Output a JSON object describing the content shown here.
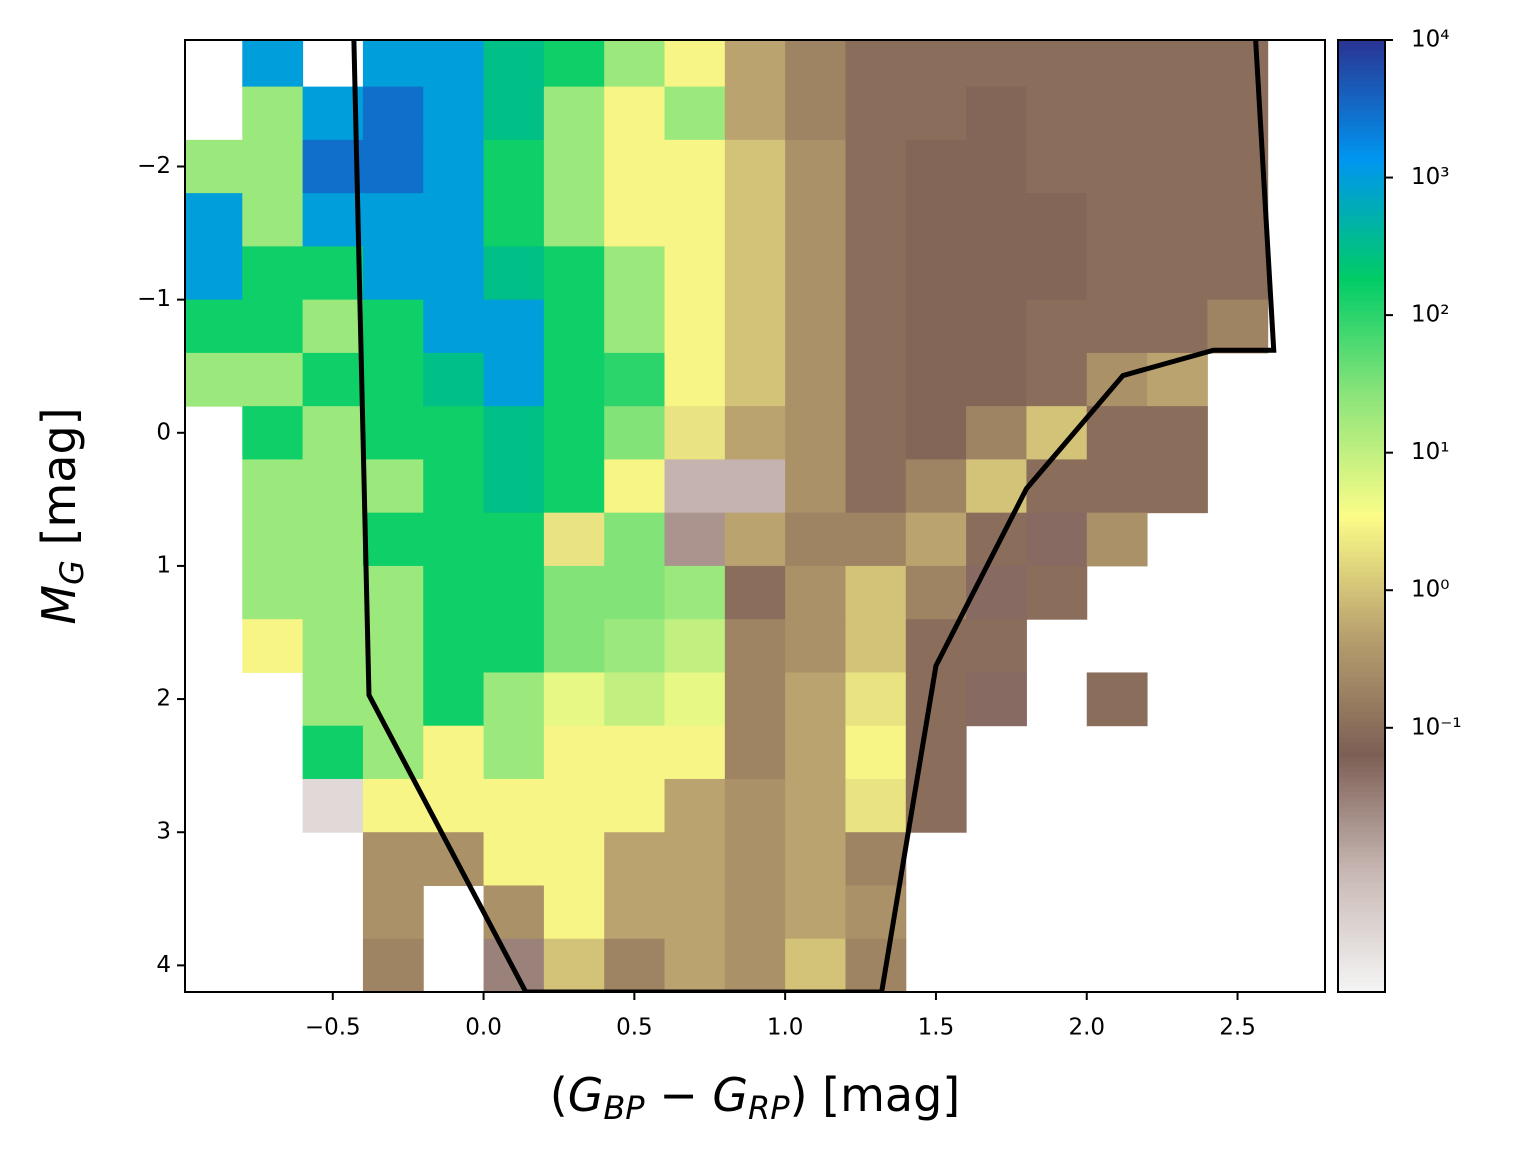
{
  "chart_data": {
    "type": "heatmap",
    "xlabel": [
      {
        "t": "("
      },
      {
        "t": "G",
        "italic": true
      },
      {
        "t": "BP",
        "italic": true,
        "sub": true
      },
      {
        "t": " − "
      },
      {
        "t": "G",
        "italic": true
      },
      {
        "t": "RP",
        "italic": true,
        "sub": true
      },
      {
        "t": ") [mag]"
      }
    ],
    "ylabel": [
      {
        "t": "M",
        "italic": true
      },
      {
        "t": "G",
        "italic": true,
        "sub": true
      },
      {
        "t": " [mag]"
      }
    ],
    "xlim": [
      -0.99,
      2.79
    ],
    "ylim": [
      4.2,
      -2.95
    ],
    "xticks": [
      {
        "value": -0.5,
        "label": "−0.5"
      },
      {
        "value": 0,
        "label": "0.0"
      },
      0.5,
      {
        "value": 1,
        "label": "1.0"
      },
      1.5,
      {
        "value": 2,
        "label": "2.0"
      },
      2.5
    ],
    "yticks": [
      {
        "value": -2,
        "label": "−2"
      },
      {
        "value": -1,
        "label": "−1"
      },
      0,
      1,
      2,
      3,
      4
    ],
    "xbins": [
      -1.0,
      -0.8,
      -0.6,
      -0.4,
      -0.2,
      0.0,
      0.2,
      0.4,
      0.6,
      0.8,
      1.0,
      1.2,
      1.4,
      1.6,
      1.8,
      2.0,
      2.2,
      2.4,
      2.6,
      2.8
    ],
    "ybins": [
      -3.0,
      -2.6,
      -2.2,
      -1.8,
      -1.4,
      -1.0,
      -0.6,
      -0.2,
      0.2,
      0.6,
      1.0,
      1.4,
      1.8,
      2.2,
      2.6,
      3.0,
      3.4,
      3.8,
      4.2
    ],
    "z": [
      [
        null,
        1000,
        null,
        1000,
        1000,
        300,
        150,
        20,
        3,
        0.5,
        0.2,
        0.1,
        0.1,
        0.1,
        0.1,
        0.1,
        0.1,
        0.1,
        null
      ],
      [
        null,
        20,
        1000,
        3000,
        1000,
        300,
        20,
        3,
        20,
        0.5,
        0.2,
        0.1,
        0.1,
        0.08,
        0.1,
        0.1,
        0.1,
        0.1,
        null
      ],
      [
        20,
        20,
        3000,
        3000,
        1000,
        150,
        20,
        3,
        3,
        1,
        0.3,
        0.1,
        0.08,
        0.08,
        0.1,
        0.1,
        0.1,
        0.1,
        null
      ],
      [
        1000,
        20,
        1000,
        1000,
        1000,
        150,
        20,
        3,
        3,
        1,
        0.3,
        0.1,
        0.08,
        0.08,
        0.08,
        0.1,
        0.1,
        0.1,
        null
      ],
      [
        1000,
        150,
        150,
        1000,
        1000,
        300,
        150,
        20,
        3,
        1,
        0.3,
        0.1,
        0.08,
        0.08,
        0.08,
        0.1,
        0.1,
        0.1,
        null
      ],
      [
        150,
        150,
        20,
        150,
        1000,
        1000,
        150,
        20,
        3,
        1,
        0.3,
        0.1,
        0.08,
        0.08,
        0.1,
        0.1,
        0.1,
        0.2,
        null
      ],
      [
        20,
        20,
        150,
        150,
        300,
        1000,
        150,
        100,
        3,
        1,
        0.3,
        0.1,
        0.08,
        0.08,
        0.1,
        0.3,
        0.5,
        null,
        null
      ],
      [
        null,
        150,
        20,
        150,
        150,
        300,
        150,
        30,
        2,
        0.5,
        0.3,
        0.1,
        0.08,
        0.2,
        1,
        0.1,
        0.1,
        null,
        null
      ],
      [
        null,
        20,
        20,
        20,
        150,
        300,
        150,
        3,
        0.01,
        0.01,
        0.3,
        0.1,
        0.2,
        1,
        0.1,
        0.1,
        0.1,
        null,
        null
      ],
      [
        null,
        20,
        20,
        150,
        150,
        150,
        2,
        30,
        0.02,
        0.5,
        0.2,
        0.2,
        0.5,
        0.1,
        0.05,
        0.3,
        null,
        null,
        null
      ],
      [
        null,
        20,
        20,
        20,
        150,
        150,
        30,
        30,
        20,
        0.1,
        0.3,
        1,
        0.2,
        0.05,
        0.1,
        null,
        null,
        null,
        null
      ],
      [
        null,
        3,
        20,
        20,
        150,
        150,
        30,
        20,
        10,
        0.2,
        0.3,
        1,
        0.1,
        0.1,
        null,
        null,
        null,
        null,
        null
      ],
      [
        null,
        null,
        20,
        20,
        150,
        20,
        5,
        10,
        5,
        0.2,
        0.5,
        2,
        0.1,
        0.05,
        null,
        0.1,
        null,
        null,
        null
      ],
      [
        null,
        null,
        150,
        20,
        3,
        20,
        3,
        3,
        3,
        0.2,
        0.5,
        3,
        0.1,
        null,
        null,
        null,
        null,
        null,
        null
      ],
      [
        null,
        null,
        0.003,
        3,
        3,
        3,
        3,
        3,
        0.5,
        0.3,
        0.5,
        2,
        0.1,
        null,
        null,
        null,
        null,
        null,
        null
      ],
      [
        null,
        null,
        null,
        0.3,
        0.3,
        3,
        3,
        0.5,
        0.5,
        0.3,
        0.5,
        0.2,
        null,
        null,
        null,
        null,
        null,
        null,
        null
      ],
      [
        null,
        null,
        null,
        0.3,
        null,
        0.3,
        3,
        0.5,
        0.5,
        0.3,
        0.5,
        0.3,
        null,
        null,
        null,
        null,
        null,
        null,
        null
      ],
      [
        null,
        null,
        null,
        0.2,
        null,
        0.03,
        1,
        0.2,
        0.5,
        0.3,
        1,
        0.2,
        null,
        null,
        null,
        null,
        null,
        null,
        null
      ]
    ],
    "clim": [
      0.0012,
      10000
    ],
    "log_color": true,
    "colormap": [
      "#f5f5f5",
      "#c9b9b5",
      "#7d5f55",
      "#b8a06e",
      "#fcfc88",
      "#8ee57a",
      "#00cc66",
      "#0096f0",
      "#2a3494"
    ],
    "cticks": [
      {
        "value": 10000,
        "label": "10⁴"
      },
      {
        "value": 1000,
        "label": "10³"
      },
      {
        "value": 100,
        "label": "10²"
      },
      {
        "value": 10,
        "label": "10¹"
      },
      {
        "value": 1,
        "label": "10⁰"
      },
      {
        "value": 0.1,
        "label": "10⁻¹"
      }
    ],
    "polygon": {
      "color": "#000000",
      "x": [
        -0.43,
        -0.38,
        0.14,
        1.32,
        1.5,
        1.8,
        2.12,
        2.42,
        2.62,
        2.56
      ],
      "y": [
        -2.95,
        1.97,
        4.2,
        4.2,
        1.75,
        0.42,
        -0.43,
        -0.62,
        -0.62,
        -2.95
      ]
    }
  }
}
